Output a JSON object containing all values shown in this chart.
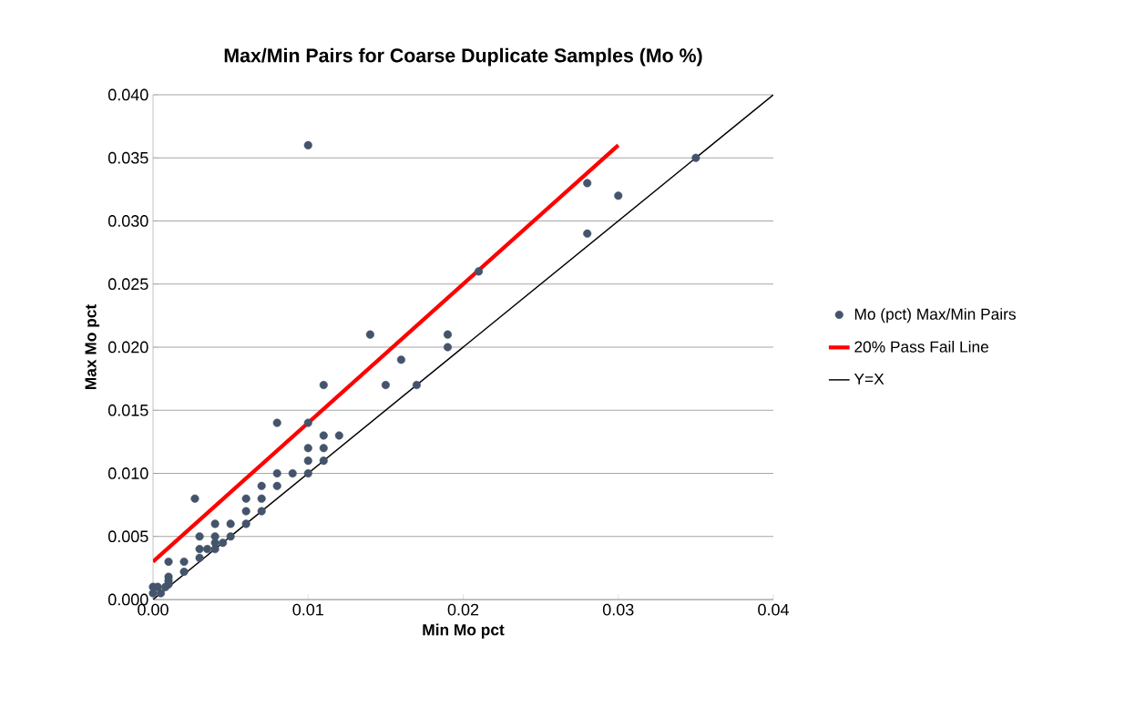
{
  "chart_data": {
    "type": "scatter",
    "title": "Max/Min Pairs for Coarse Duplicate Samples (Mo %)",
    "xlabel": "Min Mo pct",
    "ylabel": "Max Mo pct",
    "xlim": [
      0,
      0.04
    ],
    "ylim": [
      0,
      0.04
    ],
    "xticks": [
      {
        "value": 0,
        "label": "0.00"
      },
      {
        "value": 0.01,
        "label": "0.01"
      },
      {
        "value": 0.02,
        "label": "0.02"
      },
      {
        "value": 0.03,
        "label": "0.03"
      },
      {
        "value": 0.04,
        "label": "0.04"
      }
    ],
    "yticks": [
      {
        "value": 0,
        "label": "0.000"
      },
      {
        "value": 0.005,
        "label": "0.005"
      },
      {
        "value": 0.01,
        "label": "0.010"
      },
      {
        "value": 0.015,
        "label": "0.015"
      },
      {
        "value": 0.02,
        "label": "0.020"
      },
      {
        "value": 0.025,
        "label": "0.025"
      },
      {
        "value": 0.03,
        "label": "0.030"
      },
      {
        "value": 0.035,
        "label": "0.035"
      },
      {
        "value": 0.04,
        "label": "0.040"
      }
    ],
    "grid": "y",
    "legend": "right",
    "marker": "circle",
    "series": [
      {
        "name": "Mo (pct) Max/Min Pairs",
        "color": "#44546a",
        "x": [
          0.01,
          0.035,
          0.028,
          0.03,
          0.028,
          0.021,
          0.014,
          0.019,
          0.019,
          0.016,
          0.011,
          0.015,
          0.017,
          0.008,
          0.01,
          0.011,
          0.012,
          0.01,
          0.011,
          0.01,
          0.011,
          0.008,
          0.009,
          0.01,
          0.008,
          0.006,
          0.007,
          0.007,
          0.006,
          0.007,
          0.0027,
          0.004,
          0.005,
          0.006,
          0.003,
          0.004,
          0.005,
          0.003,
          0.0035,
          0.004,
          0.004,
          0.0045,
          0.003,
          0.002,
          0.002,
          0.001,
          0.001,
          0.001,
          0.001,
          0.0008,
          0.0003,
          0.0,
          0.0,
          0.0005
        ],
        "values": [
          0.036,
          0.035,
          0.033,
          0.032,
          0.029,
          0.026,
          0.021,
          0.021,
          0.02,
          0.019,
          0.017,
          0.017,
          0.017,
          0.014,
          0.014,
          0.013,
          0.013,
          0.012,
          0.012,
          0.011,
          0.011,
          0.01,
          0.01,
          0.01,
          0.009,
          0.008,
          0.008,
          0.009,
          0.007,
          0.007,
          0.008,
          0.006,
          0.006,
          0.006,
          0.005,
          0.005,
          0.005,
          0.004,
          0.004,
          0.004,
          0.0045,
          0.0045,
          0.0033,
          0.003,
          0.0022,
          0.003,
          0.0018,
          0.0015,
          0.0012,
          0.001,
          0.001,
          0.0005,
          0.001,
          0.0005
        ]
      },
      {
        "name": "20% Pass Fail Line",
        "type": "line",
        "marker": "none",
        "color": "#ff0000",
        "x": [
          0,
          0.03
        ],
        "values": [
          0.003,
          0.036
        ]
      },
      {
        "name": "Y=X",
        "type": "line",
        "marker": "none",
        "color": "#000000",
        "x": [
          0,
          0.04
        ],
        "values": [
          0,
          0.04
        ]
      }
    ]
  }
}
